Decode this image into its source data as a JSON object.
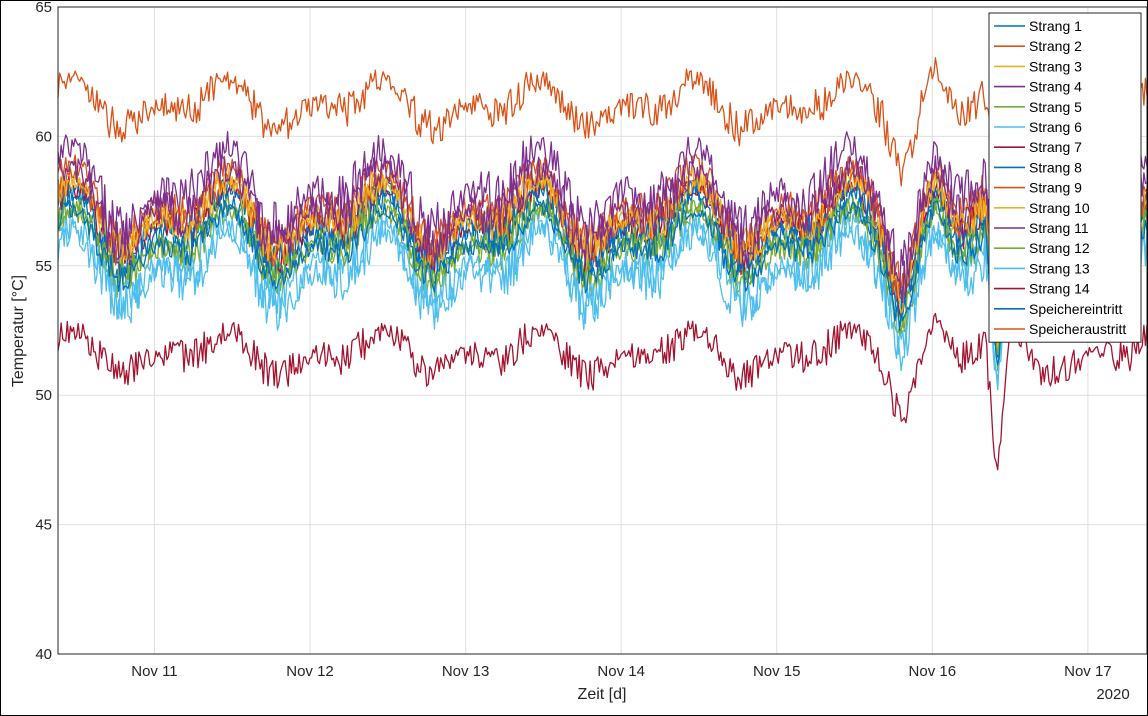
{
  "chart_data": {
    "type": "line",
    "xlabel": "Zeit [d]",
    "ylabel": "Temperatur [°C]",
    "x_year_label": "2020",
    "xlim": [
      10.38,
      17.38
    ],
    "ylim": [
      40,
      65
    ],
    "yticks": [
      40,
      45,
      50,
      55,
      60,
      65
    ],
    "xticks": [
      {
        "value": 11,
        "label": "Nov 11"
      },
      {
        "value": 12,
        "label": "Nov 12"
      },
      {
        "value": 13,
        "label": "Nov 13"
      },
      {
        "value": 14,
        "label": "Nov 14"
      },
      {
        "value": 15,
        "label": "Nov 15"
      },
      {
        "value": 16,
        "label": "Nov 16"
      },
      {
        "value": 17,
        "label": "Nov 17"
      }
    ],
    "grid": true,
    "legend_position": "top-right",
    "series": [
      {
        "name": "Strang 1",
        "color": "#0072BD",
        "base": 56.2,
        "amp": 1.3,
        "noise": 0.6
      },
      {
        "name": "Strang 2",
        "color": "#D95319",
        "base": 57.4,
        "amp": 1.4,
        "noise": 0.6
      },
      {
        "name": "Strang 3",
        "color": "#EDB120",
        "base": 57.0,
        "amp": 1.3,
        "noise": 0.6
      },
      {
        "name": "Strang 4",
        "color": "#7E2F8E",
        "base": 57.9,
        "amp": 1.5,
        "noise": 0.9
      },
      {
        "name": "Strang 5",
        "color": "#77AC30",
        "base": 55.7,
        "amp": 1.3,
        "noise": 0.6
      },
      {
        "name": "Strang 6",
        "color": "#4DBEEE",
        "base": 55.0,
        "amp": 1.4,
        "noise": 0.8
      },
      {
        "name": "Strang 7",
        "color": "#A2142F",
        "base": 56.6,
        "amp": 1.3,
        "noise": 0.6
      },
      {
        "name": "Strang 8",
        "color": "#0072BD",
        "base": 56.5,
        "amp": 1.3,
        "noise": 0.6
      },
      {
        "name": "Strang 9",
        "color": "#D95319",
        "base": 56.9,
        "amp": 1.3,
        "noise": 0.6
      },
      {
        "name": "Strang 10",
        "color": "#EDB120",
        "base": 56.8,
        "amp": 1.3,
        "noise": 0.6
      },
      {
        "name": "Strang 11",
        "color": "#7E2F8E",
        "base": 57.2,
        "amp": 1.4,
        "noise": 0.8
      },
      {
        "name": "Strang 12",
        "color": "#77AC30",
        "base": 55.9,
        "amp": 1.3,
        "noise": 0.6
      },
      {
        "name": "Strang 13",
        "color": "#4DBEEE",
        "base": 54.8,
        "amp": 1.4,
        "noise": 0.8
      },
      {
        "name": "Strang 14",
        "color": "#A2142F",
        "base": 51.6,
        "amp": 0.8,
        "noise": 0.6
      },
      {
        "name": "Speichereintritt",
        "color": "#0072BD",
        "base": 55.8,
        "amp": 1.3,
        "noise": 0.5
      },
      {
        "name": "Speicheraustritt",
        "color": "#D95319",
        "base": 61.2,
        "amp": 0.9,
        "noise": 0.6
      }
    ]
  }
}
